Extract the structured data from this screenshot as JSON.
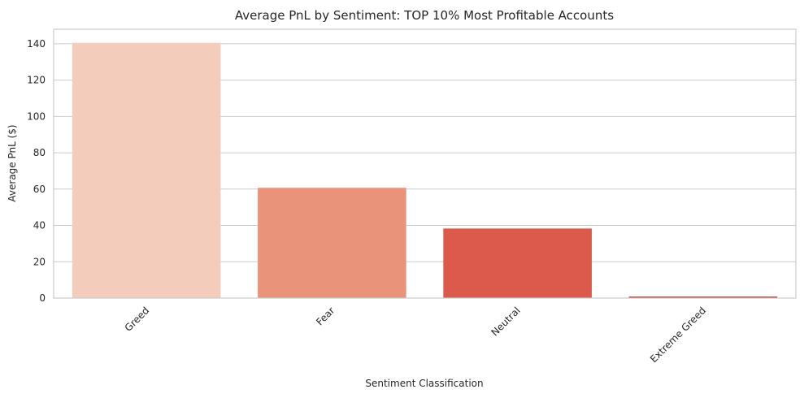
{
  "chart_data": {
    "type": "bar",
    "title": "Average PnL by Sentiment: TOP 10% Most Profitable Accounts",
    "xlabel": "Sentiment Classification",
    "ylabel": "Average PnL ($)",
    "categories": [
      "Greed",
      "Fear",
      "Neutral",
      "Extreme Greed"
    ],
    "values": [
      140.5,
      60.7,
      38.3,
      0.8
    ],
    "colors": [
      "#f4ccbc",
      "#ea937b",
      "#db5a4c",
      "#b62c29"
    ],
    "ylim": [
      0,
      148
    ],
    "yticks": [
      0,
      20,
      40,
      60,
      80,
      100,
      120,
      140
    ],
    "grid": "horizontal",
    "legend": "none",
    "xtick_rotation": 45
  }
}
